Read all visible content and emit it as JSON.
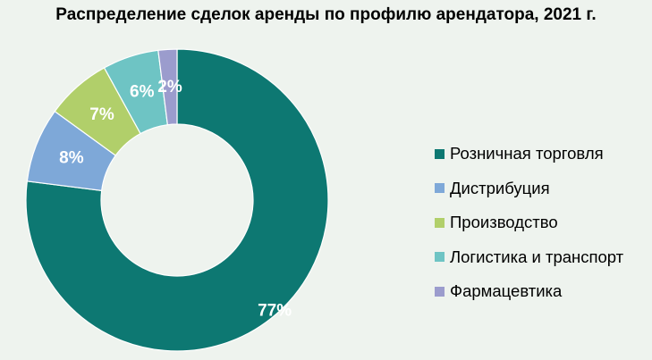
{
  "chart_data": {
    "type": "pie",
    "donut": true,
    "title": "Распределение сделок аренды по профилю арендатора, 2021 г.",
    "legend_position": "right",
    "series": [
      {
        "name": "Розничная торговля",
        "value": 77,
        "label": "77%",
        "color": "#0d7872"
      },
      {
        "name": "Дистрибуция",
        "value": 8,
        "label": "8%",
        "color": "#7ea8d8"
      },
      {
        "name": "Производство",
        "value": 7,
        "label": "7%",
        "color": "#b1cf6a"
      },
      {
        "name": "Логистика и транспорт",
        "value": 6,
        "label": "6%",
        "color": "#6ec4c4"
      },
      {
        "name": "Фармацевтика",
        "value": 2,
        "label": "2%",
        "color": "#9b9ccd"
      }
    ]
  }
}
